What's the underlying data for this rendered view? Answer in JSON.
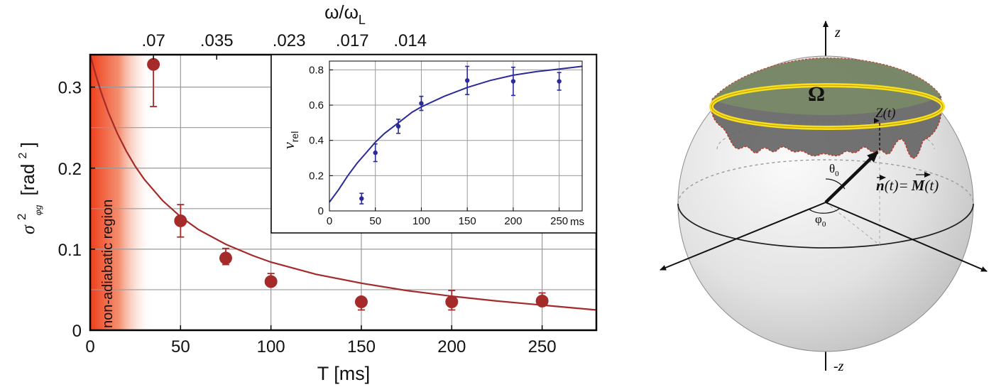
{
  "chart_data": [
    {
      "type": "scatter",
      "xlabel": "T [ms]",
      "ylabel_base": "σ",
      "ylabel_sup": "2",
      "ylabel_sub": "φg",
      "ylabel_unit_prefix": "[rad",
      "ylabel_unit_sup": "2",
      "ylabel_unit_suffix": "]",
      "top_axis_label_main": "ω/ω",
      "top_axis_label_sub": "L",
      "xlim": [
        0,
        280
      ],
      "ylim": [
        0,
        0.34
      ],
      "xticks": [
        0,
        50,
        100,
        150,
        200,
        250
      ],
      "yticks": [
        0,
        0.1,
        0.2,
        0.3
      ],
      "ytick_labels": [
        "0",
        "0.1",
        "0.2",
        "0.3"
      ],
      "top_ticks": [
        {
          "x": 35,
          "label": ".07"
        },
        {
          "x": 70,
          "label": ".035"
        },
        {
          "x": 110,
          "label": ".023"
        },
        {
          "x": 145,
          "label": ".017"
        },
        {
          "x": 177,
          "label": ".014"
        }
      ],
      "grid": true,
      "shaded_region": {
        "label": "non-adiabatic region",
        "x_range": [
          0,
          35
        ],
        "color": "#f0401e"
      },
      "points": [
        {
          "x": 35,
          "y": 0.328,
          "err_low": 0.052,
          "err_high": 0.0
        },
        {
          "x": 50,
          "y": 0.135,
          "err_low": 0.02,
          "err_high": 0.02
        },
        {
          "x": 75,
          "y": 0.089,
          "err_low": 0.008,
          "err_high": 0.012
        },
        {
          "x": 100,
          "y": 0.06,
          "err_low": 0.005,
          "err_high": 0.01
        },
        {
          "x": 150,
          "y": 0.035,
          "err_low": 0.01,
          "err_high": 0.005
        },
        {
          "x": 200,
          "y": 0.035,
          "err_low": 0.01,
          "err_high": 0.014
        },
        {
          "x": 250,
          "y": 0.036,
          "err_low": 0.004,
          "err_high": 0.01
        }
      ],
      "fit_curve": {
        "x": [
          0,
          3,
          6,
          10,
          15,
          20,
          25,
          30,
          40,
          50,
          60,
          75,
          90,
          100,
          125,
          150,
          175,
          200,
          225,
          250,
          280
        ],
        "y": [
          0.34,
          0.316,
          0.294,
          0.269,
          0.243,
          0.221,
          0.202,
          0.186,
          0.16,
          0.14,
          0.124,
          0.106,
          0.092,
          0.084,
          0.069,
          0.058,
          0.049,
          0.042,
          0.036,
          0.031,
          0.025
        ]
      },
      "color": "#a52a2a",
      "inset": {
        "ylabel_main": "ν",
        "ylabel_sub": "rel",
        "x_unit": "ms",
        "xlim": [
          0,
          275
        ],
        "ylim": [
          0,
          0.85
        ],
        "xticks": [
          0,
          50,
          100,
          150,
          200,
          250
        ],
        "yticks": [
          0,
          0.2,
          0.4,
          0.6,
          0.8
        ],
        "ytick_labels": [
          "0",
          "0.2",
          "0.4",
          "0.6",
          "0.8"
        ],
        "color": "#2a2a9a",
        "points": [
          {
            "x": 35,
            "y": 0.07,
            "err": 0.03
          },
          {
            "x": 50,
            "y": 0.33,
            "err": 0.05
          },
          {
            "x": 75,
            "y": 0.48,
            "err": 0.04
          },
          {
            "x": 100,
            "y": 0.61,
            "err": 0.04
          },
          {
            "x": 150,
            "y": 0.74,
            "err": 0.08
          },
          {
            "x": 200,
            "y": 0.735,
            "err": 0.08
          },
          {
            "x": 250,
            "y": 0.735,
            "err": 0.05
          }
        ],
        "fit_curve": {
          "x": [
            0,
            10,
            20,
            30,
            40,
            50,
            60,
            75,
            90,
            100,
            125,
            150,
            175,
            200,
            225,
            250,
            275
          ],
          "y": [
            0.05,
            0.12,
            0.2,
            0.27,
            0.33,
            0.39,
            0.44,
            0.5,
            0.56,
            0.59,
            0.65,
            0.7,
            0.74,
            0.77,
            0.79,
            0.805,
            0.82
          ]
        }
      }
    },
    {
      "type": "diagram",
      "labels": {
        "z_top": "z",
        "z_bottom": "-z",
        "omega": "Ω",
        "Z_t": "Z(t)",
        "theta": "θ",
        "theta_sub": "0",
        "phi": "φ",
        "phi_sub": "0",
        "n_vec": "n",
        "n_arg": "(t)=",
        "M_vec": "M",
        "M_arg": "(t)"
      },
      "colors": {
        "ring": "#f6e01a",
        "cap": "#5f5f5f",
        "cap_edge": "#c0392b",
        "cap_fill": "#7f9a63"
      }
    }
  ]
}
